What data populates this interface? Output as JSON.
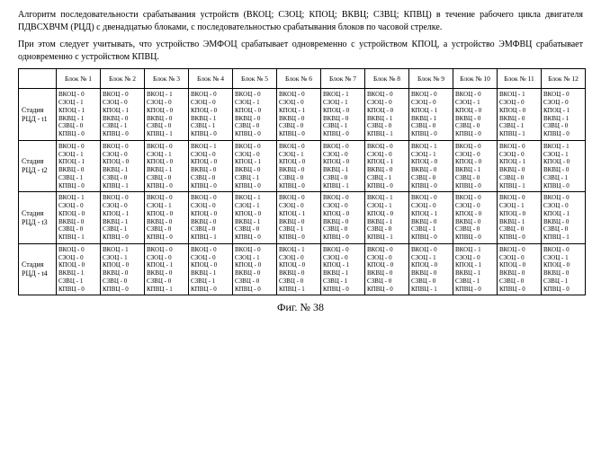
{
  "header": {
    "line1": "Алгоритм последовательности срабатывания устройств (ВКОЦ; СЗОЦ; КПОЦ; ВКВЦ; СЗВЦ; КПВЦ) в течение рабочего цикла двигателя ПДВСХВЧМ (РЦД) с двенадцатью блоками, с последовательностью срабатывания блоков по часовой стрелке.",
    "line2": "При этом следует учитывать, что устройство ЭМФОЦ срабатывает одновременно с устройством КПОЦ, а устройство ЭМФВЦ срабатывает одновременно с устройством КПВЦ."
  },
  "columns": [
    "Блок № 1",
    "Блок № 2",
    "Блок № 3",
    "Блок № 4",
    "Блок № 5",
    "Блок № 6",
    "Блок № 7",
    "Блок № 8",
    "Блок № 9",
    "Блок № 10",
    "Блок № 11",
    "Блок № 12"
  ],
  "deviceOrder": [
    "ВКОЦ",
    "СЗОЦ",
    "КПОЦ",
    "ВКВЦ",
    "СЗВЦ",
    "КПВЦ"
  ],
  "stages": [
    {
      "label": "Стадия РЦД - t1",
      "blocks": [
        [
          0,
          1,
          1,
          1,
          0,
          0
        ],
        [
          0,
          0,
          1,
          0,
          1,
          0
        ],
        [
          1,
          0,
          0,
          0,
          0,
          1
        ],
        [
          0,
          0,
          0,
          1,
          1,
          0
        ],
        [
          0,
          1,
          0,
          0,
          0,
          0
        ],
        [
          0,
          0,
          1,
          0,
          0,
          0
        ],
        [
          1,
          1,
          0,
          0,
          1,
          0
        ],
        [
          0,
          0,
          0,
          1,
          0,
          1
        ],
        [
          0,
          0,
          1,
          1,
          0,
          0
        ],
        [
          0,
          1,
          0,
          0,
          0,
          0
        ],
        [
          1,
          0,
          0,
          0,
          1,
          1
        ],
        [
          0,
          0,
          1,
          1,
          0,
          0
        ]
      ]
    },
    {
      "label": "Стадия РЦД - t2",
      "blocks": [
        [
          0,
          1,
          1,
          0,
          1,
          0
        ],
        [
          0,
          0,
          0,
          1,
          0,
          1
        ],
        [
          0,
          1,
          0,
          1,
          0,
          0
        ],
        [
          1,
          0,
          0,
          0,
          0,
          0
        ],
        [
          0,
          0,
          1,
          0,
          1,
          0
        ],
        [
          0,
          1,
          0,
          0,
          0,
          0
        ],
        [
          0,
          0,
          0,
          1,
          0,
          1
        ],
        [
          0,
          0,
          1,
          0,
          1,
          0
        ],
        [
          1,
          1,
          0,
          0,
          0,
          0
        ],
        [
          0,
          0,
          0,
          1,
          0,
          0
        ],
        [
          0,
          0,
          1,
          0,
          0,
          1
        ],
        [
          1,
          1,
          0,
          0,
          1,
          0
        ]
      ]
    },
    {
      "label": "Стадия РЦД - t3",
      "blocks": [
        [
          1,
          0,
          0,
          0,
          0,
          1
        ],
        [
          0,
          0,
          1,
          1,
          1,
          0
        ],
        [
          0,
          1,
          0,
          0,
          0,
          0
        ],
        [
          0,
          0,
          0,
          0,
          0,
          1
        ],
        [
          1,
          1,
          0,
          1,
          0,
          0
        ],
        [
          0,
          0,
          1,
          0,
          1,
          0
        ],
        [
          0,
          0,
          0,
          0,
          0,
          0
        ],
        [
          1,
          1,
          0,
          1,
          0,
          1
        ],
        [
          0,
          0,
          1,
          0,
          1,
          0
        ],
        [
          0,
          0,
          0,
          0,
          0,
          0
        ],
        [
          0,
          1,
          0,
          1,
          0,
          0
        ],
        [
          0,
          0,
          1,
          0,
          0,
          1
        ]
      ]
    },
    {
      "label": "Стадия РЦД - t4",
      "blocks": [
        [
          0,
          0,
          0,
          1,
          1,
          0
        ],
        [
          1,
          1,
          0,
          0,
          0,
          0
        ],
        [
          0,
          0,
          1,
          0,
          0,
          1
        ],
        [
          0,
          0,
          0,
          1,
          1,
          0
        ],
        [
          0,
          1,
          0,
          0,
          0,
          0
        ],
        [
          1,
          0,
          0,
          0,
          0,
          1
        ],
        [
          0,
          0,
          1,
          1,
          1,
          0
        ],
        [
          0,
          0,
          0,
          0,
          0,
          0
        ],
        [
          0,
          1,
          0,
          0,
          0,
          1
        ],
        [
          1,
          0,
          1,
          1,
          1,
          0
        ],
        [
          0,
          0,
          0,
          0,
          0,
          0
        ],
        [
          0,
          1,
          0,
          0,
          1,
          0
        ]
      ]
    }
  ],
  "caption": "Фиг. № 38",
  "style": {
    "background": "#ffffff",
    "border": "#000000",
    "text": "#000000",
    "fontFamily": "Times New Roman"
  }
}
